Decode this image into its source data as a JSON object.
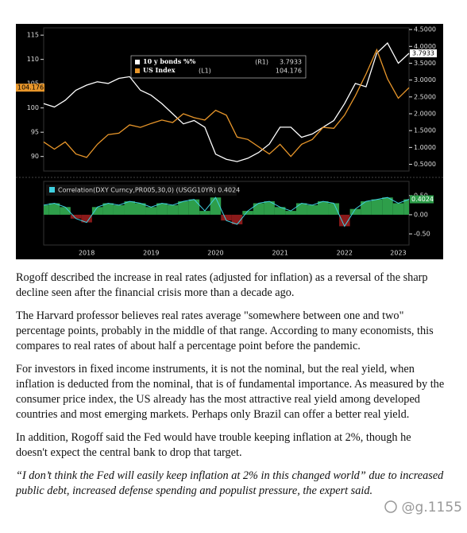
{
  "chart_data": [
    {
      "type": "line",
      "series": [
        {
          "name": "10 y bonds %%",
          "tag": "(R1)",
          "color": "#ffffff",
          "axis": "y2",
          "values": [
            2.3,
            2.2,
            2.4,
            2.7,
            2.85,
            2.95,
            2.9,
            3.05,
            3.1,
            2.7,
            2.55,
            2.3,
            2.0,
            1.7,
            1.8,
            1.6,
            0.8,
            0.65,
            0.58,
            0.68,
            0.85,
            1.1,
            1.6,
            1.6,
            1.3,
            1.4,
            1.6,
            1.8,
            2.3,
            2.9,
            2.8,
            3.8,
            4.1,
            3.5,
            3.7933
          ]
        },
        {
          "name": "US Index",
          "tag": "(L1)",
          "color": "#e8962a",
          "values": [
            93,
            91.5,
            93,
            90.5,
            89.8,
            92.5,
            94.5,
            94.8,
            96.5,
            96,
            96.8,
            97.5,
            97,
            98.8,
            98,
            97.5,
            99.5,
            98.5,
            94,
            93.5,
            92,
            90.5,
            92.5,
            90,
            92.5,
            93.5,
            96,
            95.8,
            98.5,
            102.5,
            107,
            112,
            106,
            102,
            104.176
          ]
        }
      ],
      "ylim": [
        87,
        116.5
      ],
      "yticks": [
        90,
        95,
        100,
        105,
        110,
        115
      ],
      "y2lim": [
        0.3,
        4.55
      ],
      "y2ticks": [
        {
          "value": 0.5,
          "label": "0.5000"
        },
        {
          "value": 1,
          "label": "1.0000"
        },
        {
          "value": 1.5,
          "label": "1.5000"
        },
        {
          "value": 2,
          "label": "2.0000"
        },
        {
          "value": 2.5,
          "label": "2.5000"
        },
        {
          "value": 3,
          "label": "3.0000"
        },
        {
          "value": 3.5,
          "label": "3.5000"
        },
        {
          "value": 4,
          "label": "4.0000"
        },
        {
          "value": 4.5,
          "label": "4.5000"
        }
      ]
    },
    {
      "type": "correlation",
      "title": "Correlation(DXY Curncy,PR005,30,0) (USGG10YR) 0.4024",
      "categories": [
        null,
        null,
        null,
        null,
        "2018",
        null,
        null,
        null,
        null,
        null,
        "2019",
        null,
        null,
        null,
        null,
        null,
        "2020",
        null,
        null,
        null,
        null,
        null,
        "2021",
        null,
        null,
        null,
        null,
        null,
        "2022",
        null,
        null,
        null,
        null,
        "2023",
        null
      ],
      "values": [
        0.25,
        0.3,
        0.2,
        -0.1,
        -0.2,
        0.2,
        0.3,
        0.25,
        0.35,
        0.3,
        0.2,
        0.3,
        0.25,
        0.35,
        0.4,
        0.1,
        0.45,
        -0.15,
        -0.25,
        0.1,
        0.3,
        0.35,
        0.2,
        0.1,
        0.3,
        0.25,
        0.35,
        0.3,
        -0.3,
        0.15,
        0.35,
        0.4,
        0.45,
        0.3,
        0.4024
      ],
      "positive_color": "#2e9e4a",
      "negative_color": "#8b1a1a",
      "line_color": "#3fd0e0",
      "ylim": [
        -0.79,
        0.87
      ],
      "yticks": [
        {
          "value": -0.5,
          "label": "-0.50"
        },
        {
          "value": 0,
          "label": "0.00"
        },
        {
          "value": 0.5,
          "label": "0.50"
        }
      ]
    }
  ],
  "document": {
    "paragraphs": [
      "Rogoff described the increase in real rates (adjusted for inflation) as a reversal of the sharp decline seen after the financial crisis more than a decade ago.",
      "The Harvard professor believes real rates average \"somewhere between one and two\" percentage points, probably in the middle of that range. According to many economists, this compares to real rates of about half a percentage point before the pandemic.",
      "For investors in fixed income instruments, it is not the nominal, but the real yield, when inflation is deducted from the nominal, that is of fundamental importance. As measured by the consumer price index, the US already has the most attractive real yield among developed countries and most emerging markets. Perhaps only Brazil can offer a better real yield.",
      "In addition, Rogoff said the Fed would have trouble keeping inflation at 2%, though he doesn't expect the central bank to drop that target."
    ],
    "quote": "“I don’t think the Fed will easily keep inflation at 2% in this changed world” due to increased public debt, increased defense spending and populist pressure, the expert said.",
    "watermark": "@g.1155"
  }
}
